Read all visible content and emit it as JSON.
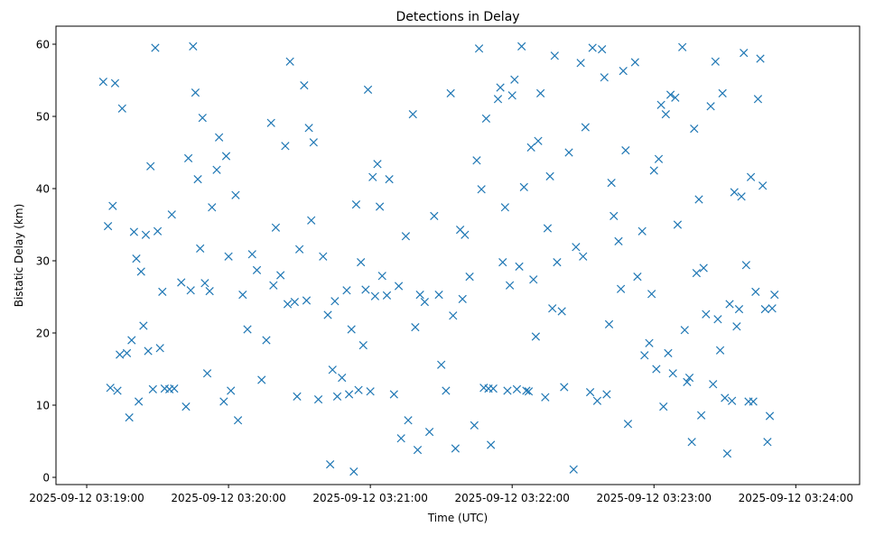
{
  "chart_data": {
    "type": "scatter",
    "title": "Detections in Delay",
    "xlabel": "Time (UTC)",
    "ylabel": "Bistatic Delay (km)",
    "x_ticks": [
      "2025-09-12 03:19:00",
      "2025-09-12 03:20:00",
      "2025-09-12 03:21:00",
      "2025-09-12 03:22:00",
      "2025-09-12 03:23:00",
      "2025-09-12 03:24:00"
    ],
    "xlim": [
      "2025-09-12 03:18:47",
      "2025-09-12 03:24:27"
    ],
    "y_ticks": [
      0,
      10,
      20,
      30,
      40,
      50,
      60
    ],
    "ylim": [
      -1,
      62.5
    ],
    "marker": "x",
    "grid": false,
    "color": "#1f77b4",
    "series": [
      {
        "points": [
          [
            "03:19:07",
            54.8
          ],
          [
            "03:19:09",
            34.8
          ],
          [
            "03:19:10",
            12.4
          ],
          [
            "03:19:11",
            37.6
          ],
          [
            "03:19:12",
            54.6
          ],
          [
            "03:19:13",
            12.0
          ],
          [
            "03:19:14",
            17.0
          ],
          [
            "03:19:15",
            51.1
          ],
          [
            "03:19:17",
            17.2
          ],
          [
            "03:19:18",
            8.3
          ],
          [
            "03:19:19",
            19.0
          ],
          [
            "03:19:20",
            34.0
          ],
          [
            "03:19:21",
            30.3
          ],
          [
            "03:19:22",
            10.5
          ],
          [
            "03:19:23",
            28.5
          ],
          [
            "03:19:24",
            21.0
          ],
          [
            "03:19:25",
            33.6
          ],
          [
            "03:19:26",
            17.5
          ],
          [
            "03:19:27",
            43.1
          ],
          [
            "03:19:28",
            12.2
          ],
          [
            "03:19:29",
            59.5
          ],
          [
            "03:19:30",
            34.1
          ],
          [
            "03:19:31",
            17.9
          ],
          [
            "03:19:32",
            25.7
          ],
          [
            "03:19:33",
            12.3
          ],
          [
            "03:19:35",
            12.2
          ],
          [
            "03:19:36",
            36.4
          ],
          [
            "03:19:37",
            12.3
          ],
          [
            "03:19:40",
            27.0
          ],
          [
            "03:19:42",
            9.8
          ],
          [
            "03:19:43",
            44.2
          ],
          [
            "03:19:44",
            25.9
          ],
          [
            "03:19:45",
            59.7
          ],
          [
            "03:19:46",
            53.3
          ],
          [
            "03:19:47",
            41.3
          ],
          [
            "03:19:48",
            31.7
          ],
          [
            "03:19:49",
            49.8
          ],
          [
            "03:19:50",
            26.9
          ],
          [
            "03:19:51",
            14.4
          ],
          [
            "03:19:52",
            25.8
          ],
          [
            "03:19:53",
            37.4
          ],
          [
            "03:19:55",
            42.6
          ],
          [
            "03:19:56",
            47.1
          ],
          [
            "03:19:58",
            10.5
          ],
          [
            "03:19:59",
            44.5
          ],
          [
            "03:20:00",
            30.6
          ],
          [
            "03:20:01",
            12.0
          ],
          [
            "03:20:03",
            39.1
          ],
          [
            "03:20:04",
            7.9
          ],
          [
            "03:20:06",
            25.3
          ],
          [
            "03:20:08",
            20.5
          ],
          [
            "03:20:10",
            30.9
          ],
          [
            "03:20:12",
            28.7
          ],
          [
            "03:20:14",
            13.5
          ],
          [
            "03:20:16",
            19.0
          ],
          [
            "03:20:18",
            49.1
          ],
          [
            "03:20:19",
            26.6
          ],
          [
            "03:20:20",
            34.6
          ],
          [
            "03:20:22",
            28.0
          ],
          [
            "03:20:24",
            45.9
          ],
          [
            "03:20:25",
            24.0
          ],
          [
            "03:20:26",
            57.6
          ],
          [
            "03:20:28",
            24.3
          ],
          [
            "03:20:29",
            11.2
          ],
          [
            "03:20:30",
            31.6
          ],
          [
            "03:20:32",
            54.3
          ],
          [
            "03:20:33",
            24.5
          ],
          [
            "03:20:34",
            48.4
          ],
          [
            "03:20:35",
            35.6
          ],
          [
            "03:20:36",
            46.4
          ],
          [
            "03:20:38",
            10.8
          ],
          [
            "03:20:40",
            30.6
          ],
          [
            "03:20:42",
            22.5
          ],
          [
            "03:20:43",
            1.8
          ],
          [
            "03:20:44",
            14.9
          ],
          [
            "03:20:45",
            24.4
          ],
          [
            "03:20:46",
            11.2
          ],
          [
            "03:20:48",
            13.8
          ],
          [
            "03:20:50",
            25.9
          ],
          [
            "03:20:51",
            11.5
          ],
          [
            "03:20:52",
            20.5
          ],
          [
            "03:20:53",
            0.8
          ],
          [
            "03:20:54",
            37.8
          ],
          [
            "03:20:55",
            12.1
          ],
          [
            "03:20:56",
            29.8
          ],
          [
            "03:20:57",
            18.3
          ],
          [
            "03:20:58",
            26.0
          ],
          [
            "03:20:59",
            53.7
          ],
          [
            "03:21:00",
            11.9
          ],
          [
            "03:21:01",
            41.6
          ],
          [
            "03:21:02",
            25.1
          ],
          [
            "03:21:03",
            43.4
          ],
          [
            "03:21:04",
            37.5
          ],
          [
            "03:21:05",
            27.9
          ],
          [
            "03:21:07",
            25.2
          ],
          [
            "03:21:08",
            41.3
          ],
          [
            "03:21:10",
            11.5
          ],
          [
            "03:21:12",
            26.5
          ],
          [
            "03:21:13",
            5.4
          ],
          [
            "03:21:15",
            33.4
          ],
          [
            "03:21:16",
            7.9
          ],
          [
            "03:21:18",
            50.3
          ],
          [
            "03:21:19",
            20.8
          ],
          [
            "03:21:20",
            3.8
          ],
          [
            "03:21:21",
            25.3
          ],
          [
            "03:21:23",
            24.3
          ],
          [
            "03:21:25",
            6.3
          ],
          [
            "03:21:27",
            36.2
          ],
          [
            "03:21:29",
            25.3
          ],
          [
            "03:21:30",
            15.6
          ],
          [
            "03:21:32",
            12.0
          ],
          [
            "03:21:34",
            53.2
          ],
          [
            "03:21:35",
            22.4
          ],
          [
            "03:21:36",
            4.0
          ],
          [
            "03:21:38",
            34.3
          ],
          [
            "03:21:39",
            24.7
          ],
          [
            "03:21:40",
            33.6
          ],
          [
            "03:21:42",
            27.8
          ],
          [
            "03:21:44",
            7.2
          ],
          [
            "03:21:45",
            43.9
          ],
          [
            "03:21:46",
            59.4
          ],
          [
            "03:21:47",
            39.9
          ],
          [
            "03:21:48",
            12.4
          ],
          [
            "03:21:49",
            49.7
          ],
          [
            "03:21:50",
            12.3
          ],
          [
            "03:21:51",
            4.5
          ],
          [
            "03:21:52",
            12.3
          ],
          [
            "03:21:54",
            52.4
          ],
          [
            "03:21:55",
            54.0
          ],
          [
            "03:21:56",
            29.8
          ],
          [
            "03:21:57",
            37.4
          ],
          [
            "03:21:58",
            12.0
          ],
          [
            "03:21:59",
            26.6
          ],
          [
            "03:22:00",
            52.9
          ],
          [
            "03:22:01",
            55.1
          ],
          [
            "03:22:02",
            12.2
          ],
          [
            "03:22:03",
            29.2
          ],
          [
            "03:22:04",
            59.7
          ],
          [
            "03:22:05",
            40.2
          ],
          [
            "03:22:06",
            12.0
          ],
          [
            "03:22:07",
            11.9
          ],
          [
            "03:22:08",
            45.7
          ],
          [
            "03:22:09",
            27.4
          ],
          [
            "03:22:10",
            19.5
          ],
          [
            "03:22:11",
            46.6
          ],
          [
            "03:22:12",
            53.2
          ],
          [
            "03:22:14",
            11.1
          ],
          [
            "03:22:15",
            34.5
          ],
          [
            "03:22:16",
            41.7
          ],
          [
            "03:22:17",
            23.4
          ],
          [
            "03:22:18",
            58.4
          ],
          [
            "03:22:19",
            29.8
          ],
          [
            "03:22:21",
            23.0
          ],
          [
            "03:22:22",
            12.5
          ],
          [
            "03:22:24",
            45.0
          ],
          [
            "03:22:26",
            1.1
          ],
          [
            "03:22:27",
            31.9
          ],
          [
            "03:22:29",
            57.4
          ],
          [
            "03:22:30",
            30.6
          ],
          [
            "03:22:31",
            48.5
          ],
          [
            "03:22:33",
            11.8
          ],
          [
            "03:22:34",
            59.5
          ],
          [
            "03:22:36",
            10.6
          ],
          [
            "03:22:38",
            59.3
          ],
          [
            "03:22:39",
            55.4
          ],
          [
            "03:22:40",
            11.5
          ],
          [
            "03:22:41",
            21.2
          ],
          [
            "03:22:42",
            40.8
          ],
          [
            "03:22:43",
            36.2
          ],
          [
            "03:22:45",
            32.7
          ],
          [
            "03:22:46",
            26.1
          ],
          [
            "03:22:47",
            56.3
          ],
          [
            "03:22:48",
            45.3
          ],
          [
            "03:22:49",
            7.4
          ],
          [
            "03:22:52",
            57.5
          ],
          [
            "03:22:53",
            27.8
          ],
          [
            "03:22:55",
            34.1
          ],
          [
            "03:22:56",
            16.9
          ],
          [
            "03:22:58",
            18.6
          ],
          [
            "03:22:59",
            25.4
          ],
          [
            "03:23:00",
            42.5
          ],
          [
            "03:23:01",
            15.0
          ],
          [
            "03:23:02",
            44.1
          ],
          [
            "03:23:03",
            51.6
          ],
          [
            "03:23:04",
            9.8
          ],
          [
            "03:23:05",
            50.3
          ],
          [
            "03:23:06",
            17.2
          ],
          [
            "03:23:07",
            53.0
          ],
          [
            "03:23:08",
            14.4
          ],
          [
            "03:23:09",
            52.6
          ],
          [
            "03:23:10",
            35.0
          ],
          [
            "03:23:12",
            59.6
          ],
          [
            "03:23:13",
            20.4
          ],
          [
            "03:23:14",
            13.2
          ],
          [
            "03:23:15",
            13.8
          ],
          [
            "03:23:16",
            4.9
          ],
          [
            "03:23:17",
            48.3
          ],
          [
            "03:23:18",
            28.3
          ],
          [
            "03:23:19",
            38.5
          ],
          [
            "03:23:20",
            8.6
          ],
          [
            "03:23:21",
            29.0
          ],
          [
            "03:23:22",
            22.6
          ],
          [
            "03:23:24",
            51.4
          ],
          [
            "03:23:25",
            12.9
          ],
          [
            "03:23:26",
            57.6
          ],
          [
            "03:23:27",
            21.9
          ],
          [
            "03:23:28",
            17.6
          ],
          [
            "03:23:29",
            53.2
          ],
          [
            "03:23:30",
            11.0
          ],
          [
            "03:23:31",
            3.3
          ],
          [
            "03:23:32",
            24.0
          ],
          [
            "03:23:33",
            10.6
          ],
          [
            "03:23:34",
            39.5
          ],
          [
            "03:23:35",
            20.9
          ],
          [
            "03:23:36",
            23.3
          ],
          [
            "03:23:37",
            38.9
          ],
          [
            "03:23:38",
            58.8
          ],
          [
            "03:23:39",
            29.4
          ],
          [
            "03:23:40",
            10.5
          ],
          [
            "03:23:41",
            41.6
          ],
          [
            "03:23:42",
            10.5
          ],
          [
            "03:23:43",
            25.7
          ],
          [
            "03:23:44",
            52.4
          ],
          [
            "03:23:45",
            58.0
          ],
          [
            "03:23:46",
            40.4
          ],
          [
            "03:23:47",
            23.3
          ],
          [
            "03:23:48",
            4.9
          ],
          [
            "03:23:49",
            8.5
          ],
          [
            "03:23:50",
            23.4
          ],
          [
            "03:23:51",
            25.3
          ]
        ]
      }
    ]
  }
}
